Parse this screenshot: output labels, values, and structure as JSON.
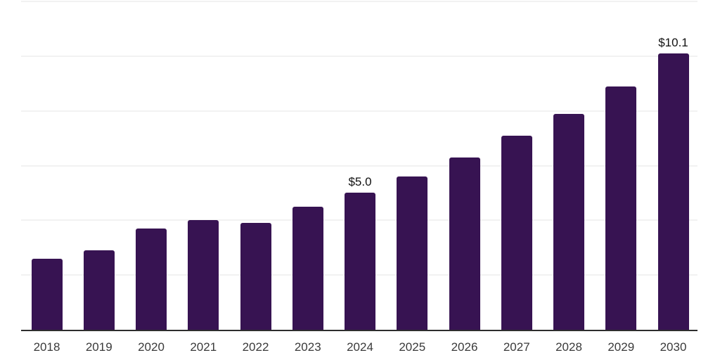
{
  "chart_data": {
    "type": "bar",
    "title": "",
    "xlabel": "",
    "ylabel": "",
    "categories": [
      "2018",
      "2019",
      "2020",
      "2021",
      "2022",
      "2023",
      "2024",
      "2025",
      "2026",
      "2027",
      "2028",
      "2029",
      "2030"
    ],
    "values": [
      2.6,
      2.9,
      3.7,
      4.0,
      3.9,
      4.5,
      5.0,
      5.6,
      6.3,
      7.1,
      7.9,
      8.9,
      10.1
    ],
    "data_labels": [
      "",
      "",
      "",
      "",
      "",
      "",
      "$5.0",
      "",
      "",
      "",
      "",
      "",
      "$10.1"
    ],
    "ylim": [
      0,
      12
    ],
    "grid_step": 2,
    "grid": "horizontal-only",
    "legend": "none",
    "colors": {
      "bar": "#371352",
      "gridline": "#f2f2f2",
      "axis_line": "#2e2e2e",
      "tick_label": "#3a3a3a",
      "data_label": "#111111",
      "background": "#ffffff"
    }
  }
}
